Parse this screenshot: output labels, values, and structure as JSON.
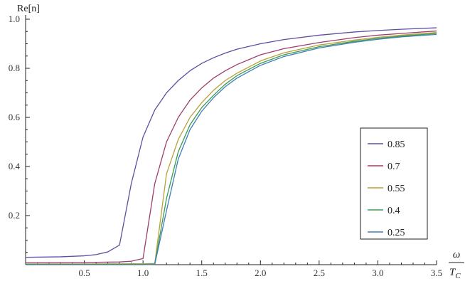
{
  "chart_data": {
    "type": "line",
    "title": "",
    "ylabel": "Re[n]",
    "xlabel": {
      "numerator": "ω",
      "denominator": "T",
      "denominator_subscript": "C"
    },
    "xlim": [
      0.0,
      3.5
    ],
    "ylim": [
      0.0,
      1.0
    ],
    "x_ticks": [
      0.5,
      1.0,
      1.5,
      2.0,
      2.5,
      3.0,
      3.5
    ],
    "x_tick_labels": [
      "0.5",
      "1.0",
      "1.5",
      "2.0",
      "2.5",
      "3.0",
      "3.5"
    ],
    "y_ticks": [
      0.2,
      0.4,
      0.6,
      0.8,
      1.0
    ],
    "y_tick_labels": [
      "0.2",
      "0.4",
      "0.6",
      "0.8",
      "1.0"
    ],
    "grid": false,
    "legend_position": "right",
    "series": [
      {
        "name": "0.85",
        "color": "#5e4fa2",
        "points": [
          [
            0.0,
            0.03
          ],
          [
            0.3,
            0.032
          ],
          [
            0.5,
            0.036
          ],
          [
            0.6,
            0.041
          ],
          [
            0.7,
            0.052
          ],
          [
            0.8,
            0.08
          ],
          [
            0.9,
            0.33
          ],
          [
            1.0,
            0.52
          ],
          [
            1.1,
            0.63
          ],
          [
            1.2,
            0.7
          ],
          [
            1.3,
            0.75
          ],
          [
            1.4,
            0.79
          ],
          [
            1.5,
            0.82
          ],
          [
            1.6,
            0.843
          ],
          [
            1.7,
            0.862
          ],
          [
            1.8,
            0.878
          ],
          [
            2.0,
            0.9
          ],
          [
            2.2,
            0.917
          ],
          [
            2.5,
            0.935
          ],
          [
            2.8,
            0.948
          ],
          [
            3.0,
            0.954
          ],
          [
            3.2,
            0.959
          ],
          [
            3.5,
            0.965
          ]
        ]
      },
      {
        "name": "0.7",
        "color": "#9e3d6d",
        "points": [
          [
            0.0,
            0.008
          ],
          [
            0.5,
            0.009
          ],
          [
            0.8,
            0.011
          ],
          [
            0.9,
            0.014
          ],
          [
            1.0,
            0.025
          ],
          [
            1.1,
            0.33
          ],
          [
            1.2,
            0.5
          ],
          [
            1.3,
            0.6
          ],
          [
            1.4,
            0.67
          ],
          [
            1.5,
            0.72
          ],
          [
            1.6,
            0.76
          ],
          [
            1.7,
            0.79
          ],
          [
            1.8,
            0.815
          ],
          [
            2.0,
            0.855
          ],
          [
            2.2,
            0.88
          ],
          [
            2.5,
            0.905
          ],
          [
            2.8,
            0.925
          ],
          [
            3.0,
            0.935
          ],
          [
            3.2,
            0.942
          ],
          [
            3.5,
            0.952
          ]
        ]
      },
      {
        "name": "0.55",
        "color": "#b8a038",
        "points": [
          [
            0.0,
            0.003
          ],
          [
            0.5,
            0.003
          ],
          [
            1.0,
            0.004
          ],
          [
            1.1,
            0.005
          ],
          [
            1.2,
            0.37
          ],
          [
            1.3,
            0.51
          ],
          [
            1.4,
            0.6
          ],
          [
            1.5,
            0.66
          ],
          [
            1.6,
            0.71
          ],
          [
            1.7,
            0.75
          ],
          [
            1.8,
            0.78
          ],
          [
            2.0,
            0.83
          ],
          [
            2.2,
            0.863
          ],
          [
            2.5,
            0.895
          ],
          [
            2.8,
            0.915
          ],
          [
            3.0,
            0.926
          ],
          [
            3.2,
            0.935
          ],
          [
            3.5,
            0.946
          ]
        ]
      },
      {
        "name": "0.4",
        "color": "#3c9a52",
        "points": [
          [
            0.0,
            0.001
          ],
          [
            0.5,
            0.001
          ],
          [
            1.0,
            0.001
          ],
          [
            1.1,
            0.002
          ],
          [
            1.2,
            0.27
          ],
          [
            1.3,
            0.46
          ],
          [
            1.4,
            0.57
          ],
          [
            1.5,
            0.64
          ],
          [
            1.6,
            0.69
          ],
          [
            1.7,
            0.735
          ],
          [
            1.8,
            0.77
          ],
          [
            2.0,
            0.82
          ],
          [
            2.2,
            0.855
          ],
          [
            2.5,
            0.888
          ],
          [
            2.8,
            0.91
          ],
          [
            3.0,
            0.922
          ],
          [
            3.2,
            0.931
          ],
          [
            3.5,
            0.942
          ]
        ]
      },
      {
        "name": "0.25",
        "color": "#3f7fb8",
        "points": [
          [
            0.0,
            0.0
          ],
          [
            0.5,
            0.0
          ],
          [
            1.0,
            0.0
          ],
          [
            1.1,
            0.001
          ],
          [
            1.2,
            0.22
          ],
          [
            1.3,
            0.43
          ],
          [
            1.4,
            0.55
          ],
          [
            1.5,
            0.625
          ],
          [
            1.6,
            0.68
          ],
          [
            1.7,
            0.725
          ],
          [
            1.8,
            0.76
          ],
          [
            2.0,
            0.812
          ],
          [
            2.2,
            0.848
          ],
          [
            2.5,
            0.883
          ],
          [
            2.8,
            0.906
          ],
          [
            3.0,
            0.918
          ],
          [
            3.2,
            0.928
          ],
          [
            3.5,
            0.938
          ]
        ]
      }
    ]
  }
}
